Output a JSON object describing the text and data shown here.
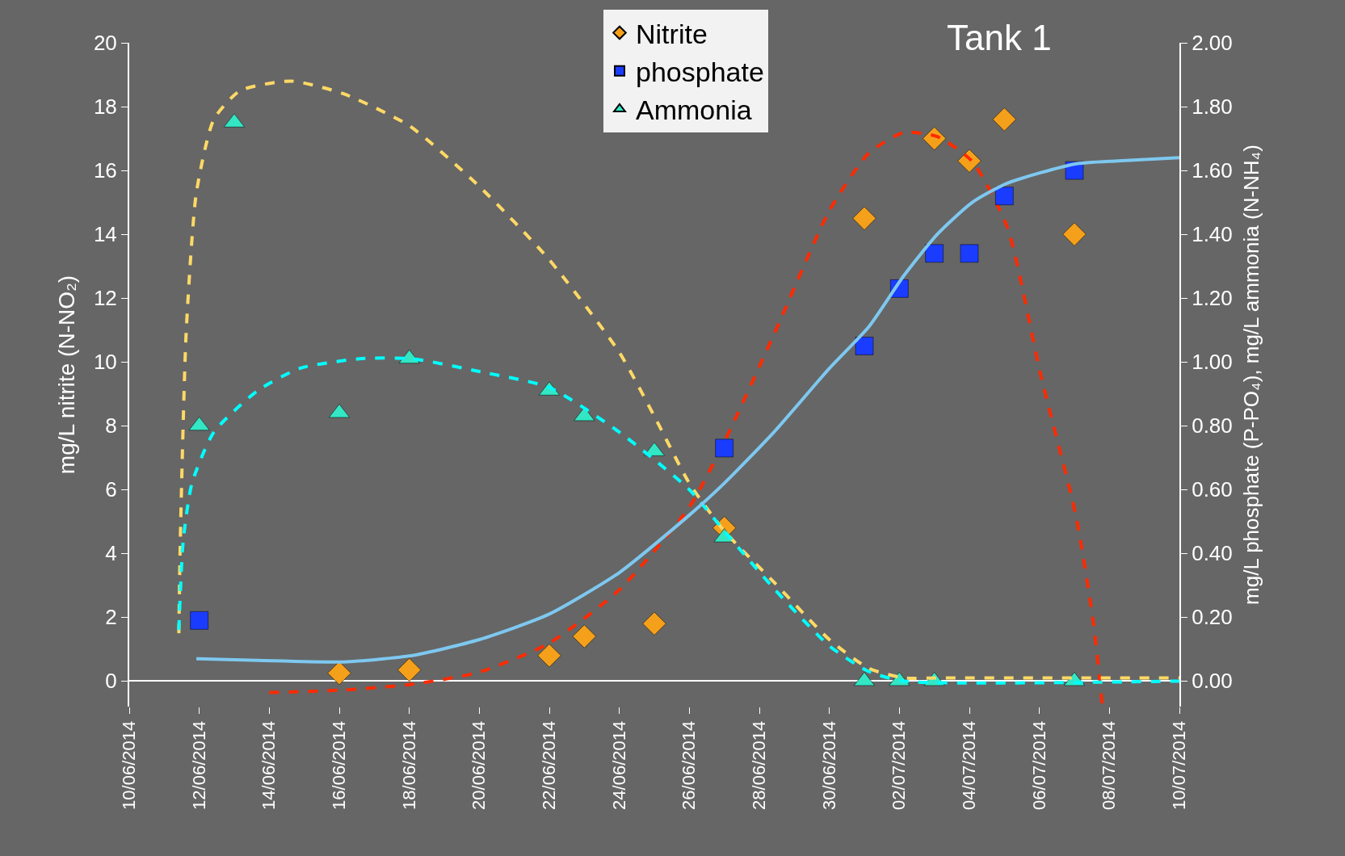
{
  "chart_data": {
    "type": "scatter",
    "ylabel": "mg/L nitrite (N-NO₂)",
    "y2label": "mg/L phosphate (P-PO₄), mg/L ammonia (N-NH₄)",
    "annotations": [
      "Tank 1"
    ],
    "xlim": [
      "2014-06-10",
      "2014-07-10"
    ],
    "xticks": [
      {
        "value": "2014-06-10",
        "label": "10/06/2014"
      },
      {
        "value": "2014-06-12",
        "label": "12/06/2014"
      },
      {
        "value": "2014-06-14",
        "label": "14/06/2014"
      },
      {
        "value": "2014-06-16",
        "label": "16/06/2014"
      },
      {
        "value": "2014-06-18",
        "label": "18/06/2014"
      },
      {
        "value": "2014-06-20",
        "label": "20/06/2014"
      },
      {
        "value": "2014-06-22",
        "label": "22/06/2014"
      },
      {
        "value": "2014-06-24",
        "label": "24/06/2014"
      },
      {
        "value": "2014-06-26",
        "label": "26/06/2014"
      },
      {
        "value": "2014-06-28",
        "label": "28/06/2014"
      },
      {
        "value": "2014-06-30",
        "label": "30/06/2014"
      },
      {
        "value": "2014-07-02",
        "label": "02/07/2014"
      },
      {
        "value": "2014-07-04",
        "label": "04/07/2014"
      },
      {
        "value": "2014-07-06",
        "label": "06/07/2014"
      },
      {
        "value": "2014-07-08",
        "label": "08/07/2014"
      },
      {
        "value": "2014-07-10",
        "label": "10/07/2014"
      }
    ],
    "ylim": [
      -0.8,
      20
    ],
    "yticks": [
      0,
      2,
      4,
      6,
      8,
      10,
      12,
      14,
      16,
      18,
      20
    ],
    "y2lim": [
      -0.08,
      2.0
    ],
    "y2ticks": [
      {
        "value": 0,
        "label": "0.00"
      },
      {
        "value": 0.2,
        "label": "0.20"
      },
      {
        "value": 0.4,
        "label": "0.40"
      },
      {
        "value": 0.6,
        "label": "0.60"
      },
      {
        "value": 0.8,
        "label": "0.80"
      },
      {
        "value": 1.0,
        "label": "1.00"
      },
      {
        "value": 1.2,
        "label": "1.20"
      },
      {
        "value": 1.4,
        "label": "1.40"
      },
      {
        "value": 1.6,
        "label": "1.60"
      },
      {
        "value": 1.8,
        "label": "1.80"
      },
      {
        "value": 2.0,
        "label": "2.00"
      }
    ],
    "grid": false,
    "legend": "top",
    "series": [
      {
        "type": "line",
        "axis": "y2",
        "color": "#ffd966",
        "line_style": "dashed",
        "marker": "none",
        "x": [
          "2014-06-11T10:00",
          "2014-06-11T11:00",
          "2014-06-11T15:00",
          "2014-06-11T22:00",
          "2014-06-12T10:00",
          "2014-06-13T04:00",
          "2014-06-14T15:00",
          "2014-06-16T03:00",
          "2014-06-18",
          "2014-06-20",
          "2014-06-22",
          "2014-06-24",
          "2014-06-25",
          "2014-06-26",
          "2014-06-27",
          "2014-06-28T10:00",
          "2014-06-30",
          "2014-07-01T03:00",
          "2014-07-02T03:00",
          "2014-07-03T08:00",
          "2014-07-10"
        ],
        "values": [
          0.15,
          0.44,
          1.09,
          1.53,
          1.76,
          1.85,
          1.88,
          1.84,
          1.74,
          1.55,
          1.32,
          1.03,
          0.83,
          0.62,
          0.47,
          0.31,
          0.13,
          0.04,
          0.01,
          0.01,
          0.01
        ]
      },
      {
        "type": "line",
        "axis": "y2",
        "color": "#00ffff",
        "line_style": "dashed",
        "marker": "none",
        "x": [
          "2014-06-11T10:00",
          "2014-06-11T13:00",
          "2014-06-11T19:00",
          "2014-06-12T10:00",
          "2014-06-13T16:00",
          "2014-06-14T21:00",
          "2014-06-16T14:00",
          "2014-06-18T02:00",
          "2014-06-20",
          "2014-06-22",
          "2014-06-24",
          "2014-06-26",
          "2014-06-27",
          "2014-06-28T10:00",
          "2014-06-30",
          "2014-07-01T03:00",
          "2014-07-02T03:00",
          "2014-07-10"
        ],
        "values": [
          0.16,
          0.44,
          0.62,
          0.78,
          0.91,
          0.98,
          1.01,
          1.01,
          0.97,
          0.92,
          0.78,
          0.6,
          0.47,
          0.29,
          0.11,
          0.03,
          0.0,
          0.0
        ]
      },
      {
        "type": "line",
        "axis": "y",
        "color": "#ff2a00",
        "line_style": "dashed",
        "marker": "none",
        "x": [
          "2014-06-14",
          "2014-06-16T03:00",
          "2014-06-18T02:00",
          "2014-06-20",
          "2014-06-22",
          "2014-06-24",
          "2014-06-26",
          "2014-06-27",
          "2014-06-28T10:00",
          "2014-06-30",
          "2014-07-01T03:00",
          "2014-07-02T03:00",
          "2014-07-03T02:00",
          "2014-07-04T02:00",
          "2014-07-05T02:00",
          "2014-07-06T01:00",
          "2014-07-07T01:00",
          "2014-07-07T13:00",
          "2014-07-07T19:00"
        ],
        "values": [
          -0.36,
          -0.28,
          -0.1,
          0.28,
          1.19,
          2.86,
          5.45,
          7.5,
          10.86,
          14.74,
          16.54,
          17.19,
          17.06,
          16.28,
          14.22,
          9.57,
          5.19,
          1.83,
          -0.7
        ]
      },
      {
        "type": "line",
        "axis": "y2",
        "color": "#7ec8f0",
        "line_style": "solid",
        "marker": "none",
        "x": [
          "2014-06-11T22:00",
          "2014-06-13T16:00",
          "2014-06-16T03:00",
          "2014-06-18T02:00",
          "2014-06-20",
          "2014-06-22",
          "2014-06-24",
          "2014-06-26",
          "2014-06-27",
          "2014-06-28T10:00",
          "2014-06-30",
          "2014-07-01T03:00",
          "2014-07-02T03:00",
          "2014-07-03T02:00",
          "2014-07-04T02:00",
          "2014-07-05T02:00",
          "2014-07-07",
          "2014-07-08T06:00",
          "2014-07-10"
        ],
        "values": [
          0.07,
          0.065,
          0.06,
          0.08,
          0.13,
          0.21,
          0.34,
          0.52,
          0.62,
          0.78,
          0.98,
          1.11,
          1.27,
          1.4,
          1.5,
          1.56,
          1.62,
          1.63,
          1.64
        ]
      },
      {
        "name": "Nitrite",
        "axis": "y",
        "color": "#f5a01a",
        "marker": "diamond",
        "x": [
          "2014-06-16",
          "2014-06-18",
          "2014-06-22",
          "2014-06-23",
          "2014-06-25",
          "2014-06-27",
          "2014-07-01",
          "2014-07-03",
          "2014-07-04",
          "2014-07-05",
          "2014-07-07"
        ],
        "values": [
          0.25,
          0.35,
          0.8,
          1.4,
          1.8,
          4.8,
          14.5,
          17.0,
          16.3,
          17.6,
          14.0
        ]
      },
      {
        "name": "phosphate",
        "axis": "y2",
        "color": "#1a3cff",
        "marker": "square",
        "x": [
          "2014-06-12",
          "2014-06-27",
          "2014-07-01",
          "2014-07-02",
          "2014-07-03",
          "2014-07-04",
          "2014-07-05",
          "2014-07-07"
        ],
        "values": [
          0.19,
          0.73,
          1.05,
          1.23,
          1.34,
          1.34,
          1.52,
          1.6
        ]
      },
      {
        "name": "Ammonia",
        "axis": "y2",
        "color": "#33e6c4",
        "marker": "triangle",
        "x": [
          "2014-06-12",
          "2014-06-13",
          "2014-06-16",
          "2014-06-18",
          "2014-06-22",
          "2014-06-23",
          "2014-06-25",
          "2014-06-27",
          "2014-07-01",
          "2014-07-02",
          "2014-07-03",
          "2014-07-07"
        ],
        "values": [
          0.8,
          1.75,
          0.84,
          1.01,
          0.91,
          0.83,
          0.72,
          0.45,
          0.0,
          0.0,
          0.0,
          0.0
        ]
      }
    ]
  }
}
